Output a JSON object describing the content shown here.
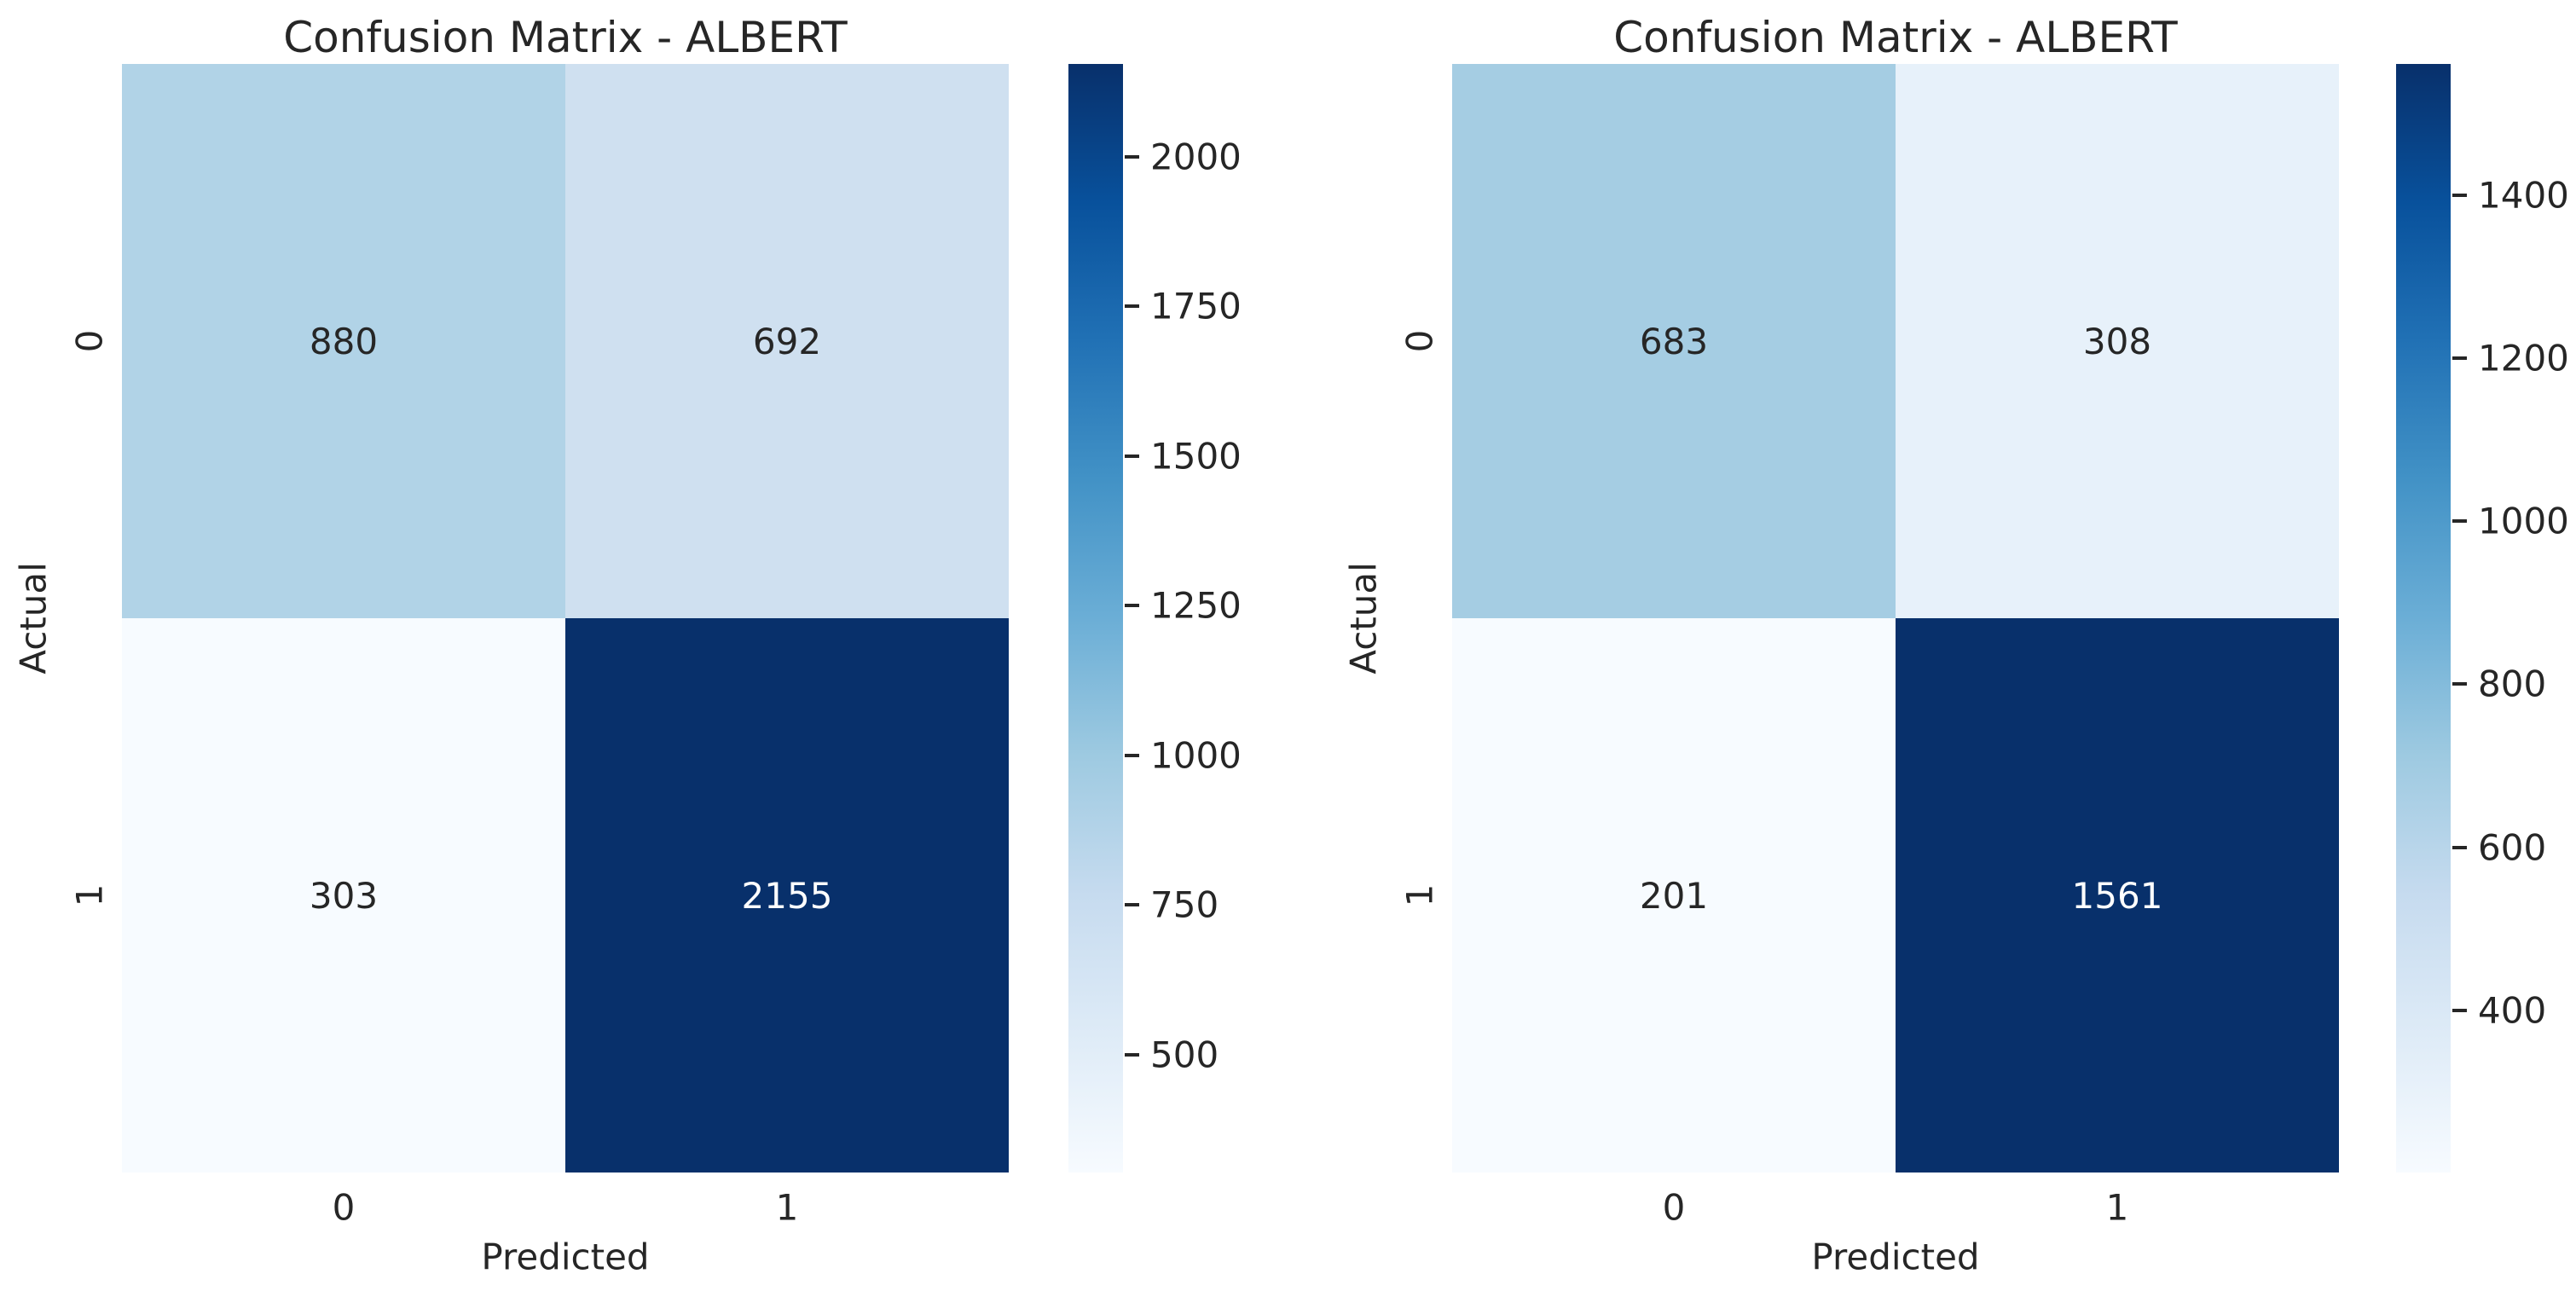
{
  "figure": {
    "background": "#ffffff",
    "text_color": "#262626"
  },
  "colormap": {
    "name": "Blues",
    "stops": [
      "#f7fbff",
      "#deebf7",
      "#c6dbef",
      "#9ecae1",
      "#6baed6",
      "#4292c6",
      "#2171b5",
      "#08519c",
      "#08306b"
    ]
  },
  "panels": [
    {
      "title": "Confusion Matrix - ALBERT",
      "xlabel": "Predicted",
      "ylabel": "Actual",
      "xticks": [
        "0",
        "1"
      ],
      "yticks": [
        "0",
        "1"
      ],
      "cells": [
        {
          "value": "880",
          "bg": "#b1d3e7",
          "fg": "#262626"
        },
        {
          "value": "692",
          "bg": "#cfe0f0",
          "fg": "#262626"
        },
        {
          "value": "303",
          "bg": "#f7fbff",
          "fg": "#262626"
        },
        {
          "value": "2155",
          "bg": "#08306b",
          "fg": "#ffffff"
        }
      ],
      "colorbar": {
        "vmin": 303,
        "vmax": 2155,
        "ticks": [
          500,
          750,
          1000,
          1250,
          1500,
          1750,
          2000
        ]
      }
    },
    {
      "title": "Confusion Matrix - ALBERT",
      "xlabel": "Predicted",
      "ylabel": "Actual",
      "xticks": [
        "0",
        "1"
      ],
      "yticks": [
        "0",
        "1"
      ],
      "cells": [
        {
          "value": "683",
          "bg": "#a5cde3",
          "fg": "#262626"
        },
        {
          "value": "308",
          "bg": "#e7f1fa",
          "fg": "#262626"
        },
        {
          "value": "201",
          "bg": "#f7fbff",
          "fg": "#262626"
        },
        {
          "value": "1561",
          "bg": "#08306b",
          "fg": "#ffffff"
        }
      ],
      "colorbar": {
        "vmin": 201,
        "vmax": 1561,
        "ticks": [
          400,
          600,
          800,
          1000,
          1200,
          1400
        ]
      }
    }
  ],
  "chart_data": [
    {
      "type": "heatmap",
      "title": "Confusion Matrix - ALBERT",
      "xlabel": "Predicted",
      "ylabel": "Actual",
      "x_categories": [
        "0",
        "1"
      ],
      "y_categories": [
        "0",
        "1"
      ],
      "matrix": [
        [
          880,
          692
        ],
        [
          303,
          2155
        ]
      ],
      "annotations": [
        [
          "880",
          "692"
        ],
        [
          "303",
          "2155"
        ]
      ],
      "colormap": "Blues",
      "vmin": 303,
      "vmax": 2155,
      "colorbar_ticks": [
        500,
        750,
        1000,
        1250,
        1500,
        1750,
        2000
      ],
      "colorbar_position": "right",
      "grid": false
    },
    {
      "type": "heatmap",
      "title": "Confusion Matrix - ALBERT",
      "xlabel": "Predicted",
      "ylabel": "Actual",
      "x_categories": [
        "0",
        "1"
      ],
      "y_categories": [
        "0",
        "1"
      ],
      "matrix": [
        [
          683,
          308
        ],
        [
          201,
          1561
        ]
      ],
      "annotations": [
        [
          "683",
          "308"
        ],
        [
          "201",
          "1561"
        ]
      ],
      "colormap": "Blues",
      "vmin": 201,
      "vmax": 1561,
      "colorbar_ticks": [
        400,
        600,
        800,
        1000,
        1200,
        1400
      ],
      "colorbar_position": "right",
      "grid": false
    }
  ]
}
